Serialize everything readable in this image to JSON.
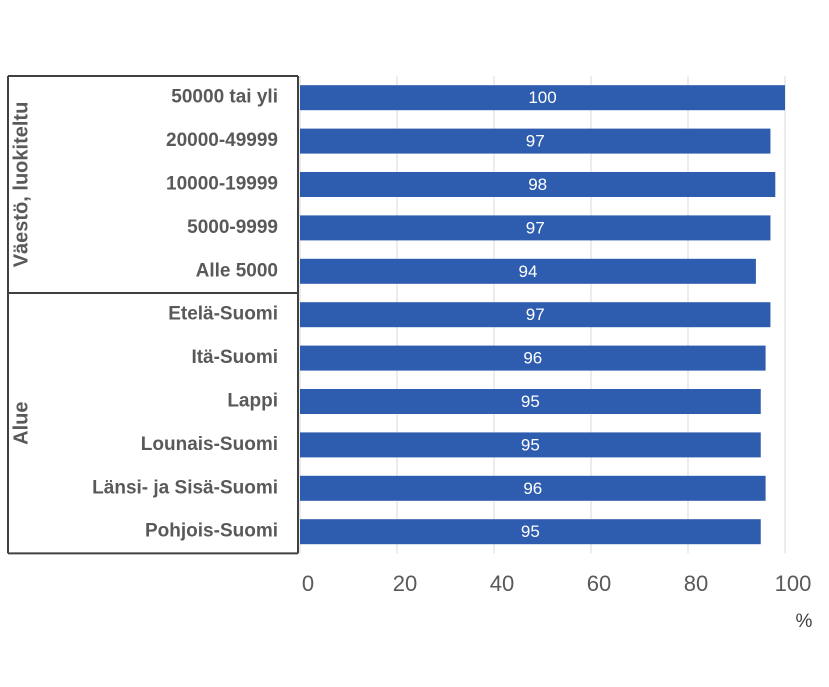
{
  "chart_data": {
    "type": "bar",
    "orientation": "horizontal",
    "color": "#2e5caf",
    "grid": true,
    "groups": [
      {
        "name": "Väestö, luokiteltu",
        "categories": [
          "50000 tai yli",
          "20000-49999",
          "10000-19999",
          "5000-9999",
          "Alle 5000"
        ],
        "values": [
          100,
          97,
          98,
          97,
          94
        ]
      },
      {
        "name": "Alue",
        "categories": [
          "Etelä-Suomi",
          "Itä-Suomi",
          "Lappi",
          "Lounais-Suomi",
          "Länsi- ja Sisä-Suomi",
          "Pohjois-Suomi"
        ],
        "values": [
          97,
          96,
          95,
          95,
          96,
          95
        ]
      }
    ],
    "xlim": [
      0,
      100
    ],
    "xticks": [
      0,
      20,
      40,
      60,
      80,
      100
    ],
    "xlabel": "%"
  }
}
